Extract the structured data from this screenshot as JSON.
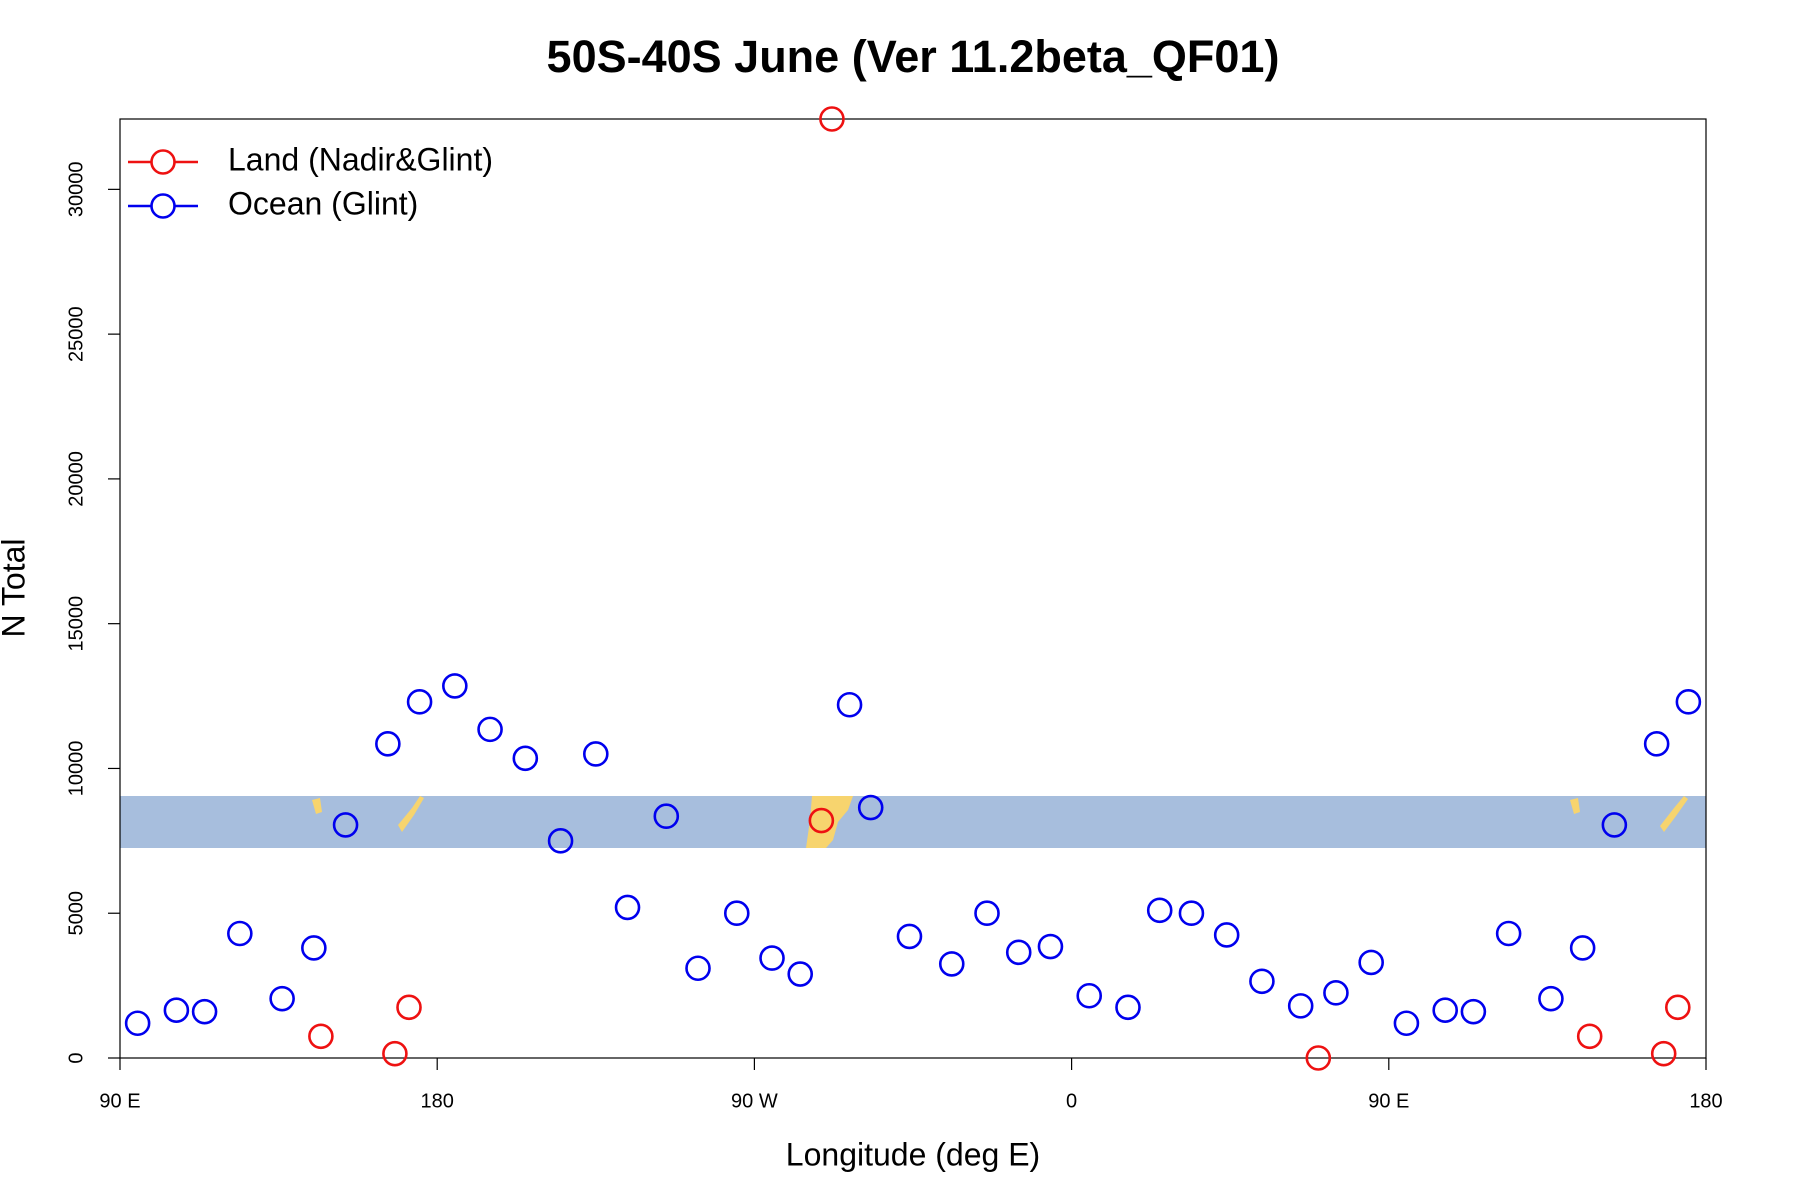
{
  "chart_data": {
    "type": "scatter",
    "title": "50S-40S June (Ver 11.2beta_QF01)",
    "x_label": "Longitude (deg E)",
    "y_label": "N Total",
    "xlim": [
      90,
      540
    ],
    "ylim": [
      0,
      32430
    ],
    "xticks": [
      {
        "value": 90,
        "label": "90 E"
      },
      {
        "value": 180,
        "label": "180"
      },
      {
        "value": 270,
        "label": "90 W"
      },
      {
        "value": 360,
        "label": "0"
      },
      {
        "value": 450,
        "label": "90 E"
      },
      {
        "value": 540,
        "label": "180"
      }
    ],
    "yticks": [
      0,
      5000,
      10000,
      15000,
      20000,
      25000,
      30000
    ],
    "legend": "top-left",
    "series": [
      {
        "name": "Land (Nadir&Glint)",
        "color": "#ee1111",
        "x": [
          147,
          168,
          172,
          289,
          292,
          430,
          507,
          528,
          532
        ],
        "values": [
          750,
          150,
          1750,
          8200,
          32430,
          0,
          750,
          150,
          1750
        ]
      },
      {
        "name": "Ocean (Glint)",
        "color": "#0000ee",
        "x": [
          95,
          106,
          114,
          124,
          136,
          145,
          154,
          166,
          175,
          185,
          195,
          205,
          215,
          225,
          234,
          245,
          254,
          265,
          275,
          283,
          297,
          303,
          314,
          326,
          336,
          345,
          354,
          365,
          376,
          385,
          394,
          404,
          414,
          425,
          435,
          445,
          455,
          466,
          474,
          484,
          496,
          505,
          514,
          526,
          535
        ],
        "values": [
          1200,
          1650,
          1600,
          4300,
          2050,
          3800,
          8050,
          10850,
          12300,
          12850,
          11350,
          10350,
          7500,
          10500,
          5200,
          8350,
          3100,
          5000,
          3450,
          2900,
          12200,
          8650,
          4200,
          3250,
          5000,
          3650,
          3850,
          2150,
          1750,
          5100,
          5000,
          4250,
          2650,
          1800,
          2250,
          3300,
          1200,
          1650,
          1600,
          4300,
          2050,
          3800,
          8050,
          10850,
          12300
        ]
      }
    ]
  }
}
